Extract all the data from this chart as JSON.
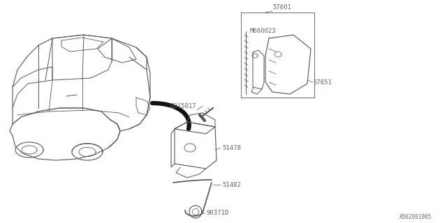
{
  "bg_color": "#ffffff",
  "diagram_id": "A562001065",
  "text_color": "#666666",
  "line_color": "#555555",
  "font_size": 6.5,
  "arrow_color": "#111111",
  "label_57601": "57601",
  "label_M660023": "M660023",
  "label_57651": "57651",
  "label_Q315017": "Q315017",
  "label_51478": "51478",
  "label_51482": "51482",
  "label_90371D": "90371D"
}
